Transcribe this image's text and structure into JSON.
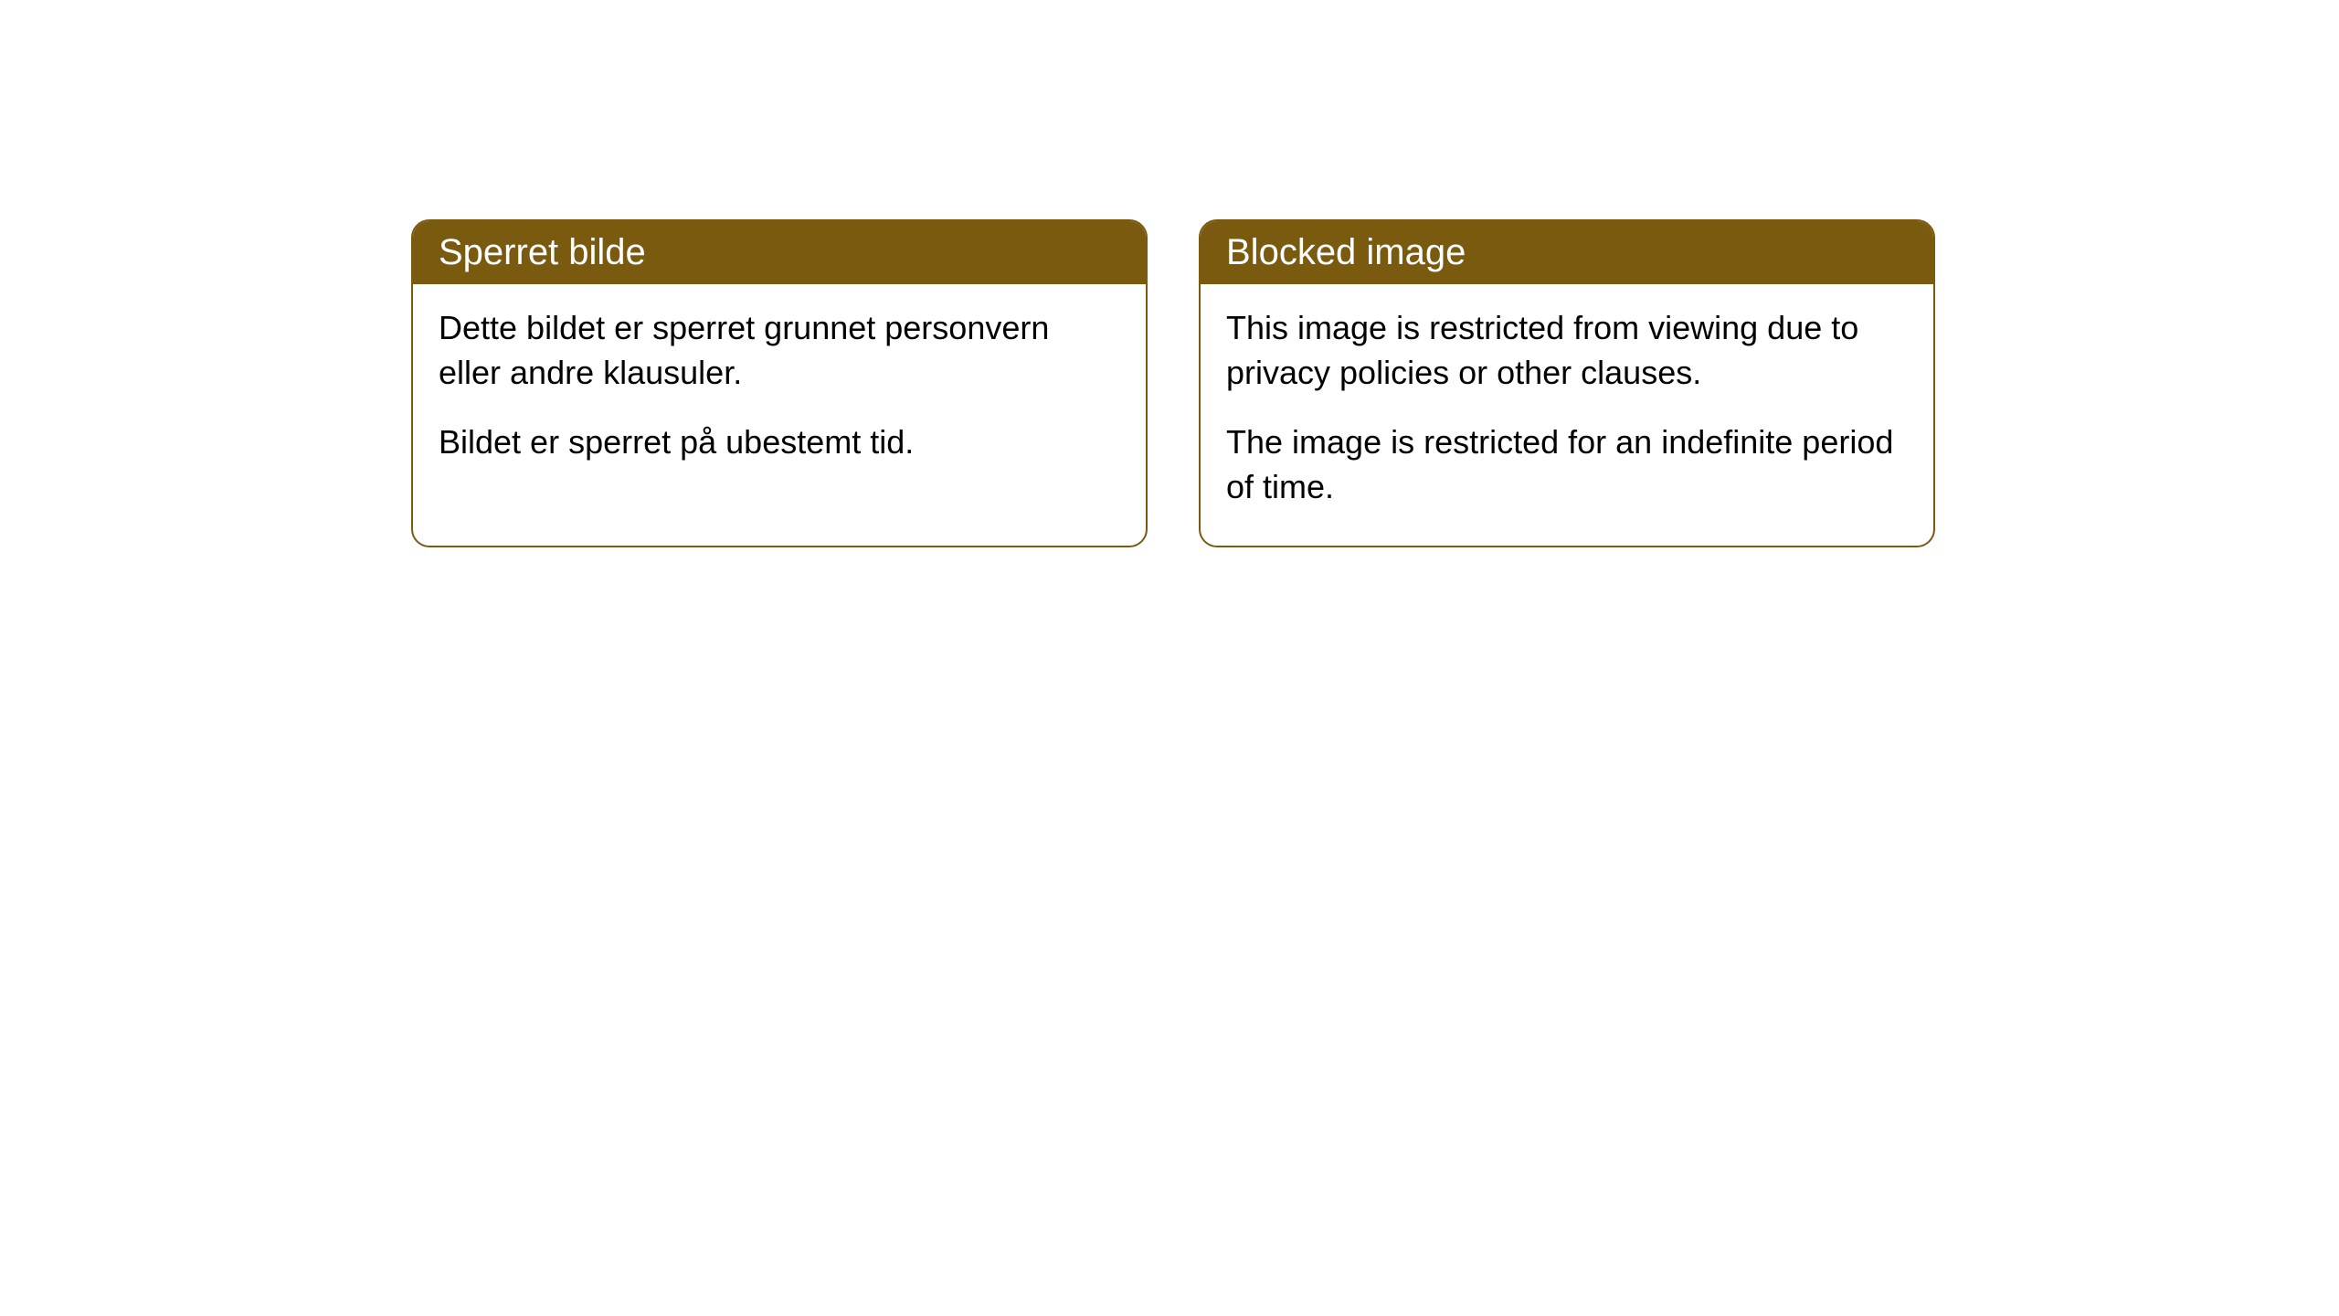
{
  "cards": [
    {
      "title": "Sperret bilde",
      "paragraph1": "Dette bildet er sperret grunnet personvern eller andre klausuler.",
      "paragraph2": "Bildet er sperret på ubestemt tid."
    },
    {
      "title": "Blocked image",
      "paragraph1": "This image is restricted from viewing due to privacy policies or other clauses.",
      "paragraph2": "The image is restricted for an indefinite period of time."
    }
  ],
  "style": {
    "header_background": "#7a5a0f",
    "header_text_color": "#ffffff",
    "border_color": "#7a5a0f",
    "body_background": "#ffffff",
    "body_text_color": "#000000",
    "border_radius": 20,
    "title_fontsize": 40,
    "body_fontsize": 36
  }
}
